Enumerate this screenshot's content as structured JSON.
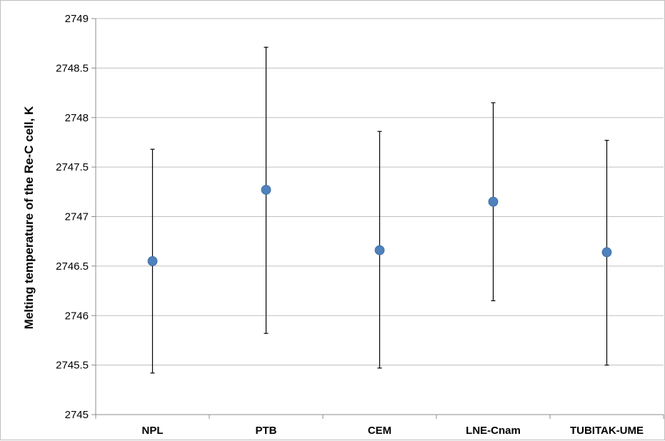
{
  "chart_data": {
    "type": "scatter",
    "title": "",
    "xlabel": "",
    "ylabel": "Melting temperature of the Re-C cell, K",
    "categories": [
      "NPL",
      "PTB",
      "CEM",
      "LNE-Cnam",
      "TUBITAK-UME"
    ],
    "series": [
      {
        "values": [
          2746.55,
          2747.27,
          2746.66,
          2747.15,
          2746.64
        ],
        "error_low": [
          2745.42,
          2745.82,
          2745.47,
          2746.15,
          2745.5
        ],
        "error_high": [
          2747.68,
          2748.71,
          2747.86,
          2748.15,
          2747.77
        ],
        "color": "#4f81bd"
      }
    ],
    "ylim": [
      2745,
      2749
    ],
    "yticks": [
      2745,
      2745.5,
      2746,
      2746.5,
      2747,
      2747.5,
      2748,
      2748.5,
      2749
    ],
    "ytick_labels": [
      "2745",
      "2745.5",
      "2746",
      "2746.5",
      "2747",
      "2747.5",
      "2748",
      "2748.5",
      "2749"
    ],
    "grid": true,
    "legend": "none"
  }
}
